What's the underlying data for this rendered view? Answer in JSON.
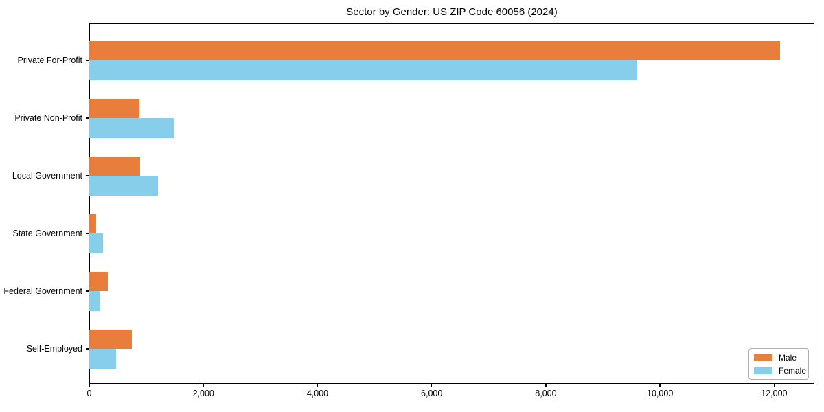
{
  "chart_data": {
    "type": "bar",
    "orientation": "horizontal",
    "title": "Sector by Gender: US ZIP Code 60056 (2024)",
    "categories": [
      "Private For-Profit",
      "Private Non-Profit",
      "Local Government",
      "State Government",
      "Federal Government",
      "Self-Employed"
    ],
    "series": [
      {
        "name": "Male",
        "color": "#e87d3c",
        "values": [
          12100,
          880,
          890,
          120,
          320,
          740
        ]
      },
      {
        "name": "Female",
        "color": "#87ceeb",
        "values": [
          9600,
          1490,
          1200,
          240,
          180,
          470
        ]
      }
    ],
    "xlabel": "",
    "ylabel": "",
    "xlim": [
      0,
      12705
    ],
    "x_ticks": [
      0,
      2000,
      4000,
      6000,
      8000,
      10000,
      12000
    ],
    "x_tick_labels": [
      "0",
      "2,000",
      "4,000",
      "6,000",
      "8,000",
      "10,000",
      "12,000"
    ],
    "grid": false,
    "legend": {
      "position": "lower-right"
    },
    "colors": {
      "axis": "#000000",
      "text": "#000000",
      "legend_border": "#b0b0b0",
      "background": "#ffffff"
    }
  }
}
